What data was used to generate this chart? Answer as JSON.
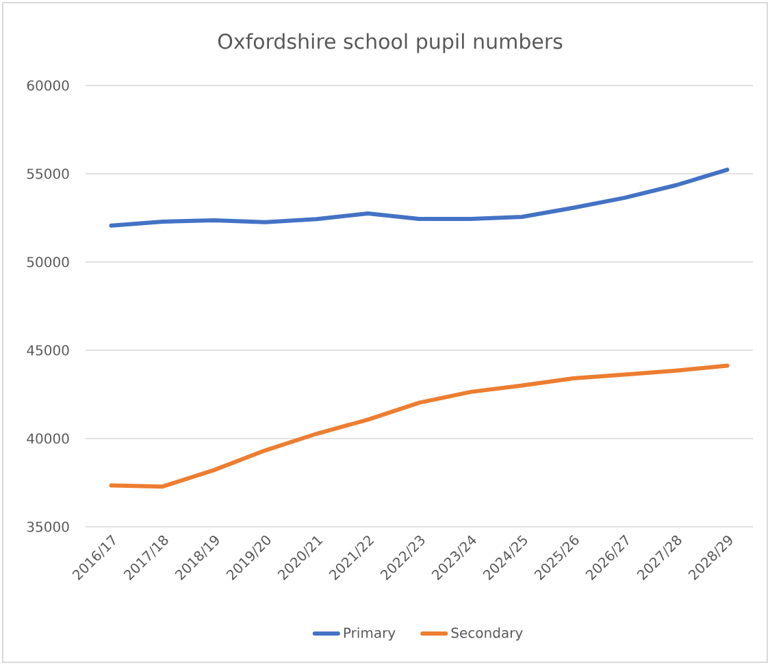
{
  "chart_data": {
    "type": "line",
    "title": "Oxfordshire school pupil numbers",
    "categories": [
      "2016/17",
      "2017/18",
      "2018/19",
      "2019/20",
      "2020/21",
      "2021/22",
      "2022/23",
      "2023/24",
      "2024/25",
      "2025/26",
      "2026/27",
      "2027/28",
      "2028/29"
    ],
    "series": [
      {
        "name": "Primary",
        "color": "#4472c4",
        "values": [
          52060,
          52290,
          52360,
          52260,
          52430,
          52750,
          52440,
          52440,
          52560,
          53070,
          53640,
          54350,
          55230
        ]
      },
      {
        "name": "Secondary",
        "color": "#ed7d31",
        "values": [
          37340,
          37280,
          38210,
          39330,
          40270,
          41070,
          42030,
          42640,
          43000,
          43410,
          43620,
          43850,
          44130
        ]
      }
    ],
    "ylim": [
      35000,
      60000
    ],
    "yticks": [
      35000,
      40000,
      45000,
      50000,
      55000,
      60000
    ],
    "grid": "y",
    "legend": "bottom"
  }
}
